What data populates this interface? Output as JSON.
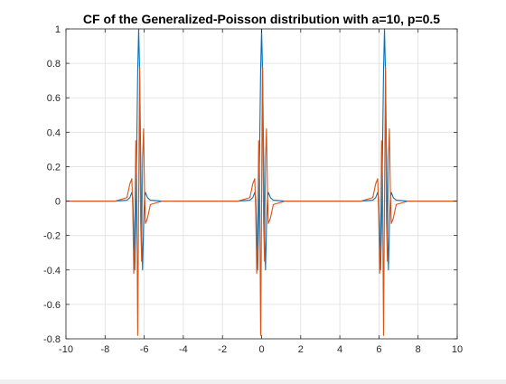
{
  "chart_data": {
    "type": "line",
    "title": "CF of the Generalized-Poisson distribution with a=10, p=0.5",
    "xlabel": "",
    "ylabel": "",
    "xlim": [
      -10,
      10
    ],
    "ylim": [
      -0.8,
      1
    ],
    "grid": true,
    "x_ticks": [
      "-10",
      "-8",
      "-6",
      "-4",
      "-2",
      "0",
      "2",
      "4",
      "6",
      "8",
      "10"
    ],
    "y_ticks": [
      "-0.8",
      "-0.6",
      "-0.4",
      "-0.2",
      "0",
      "0.2",
      "0.4",
      "0.6",
      "0.8",
      "1"
    ],
    "series": [
      {
        "color": "#0072BD",
        "centers": [
          -6.2832,
          0,
          6.2832
        ],
        "offsets": [
          -1.2,
          -0.6,
          -0.45,
          -0.35,
          -0.3,
          -0.25,
          -0.2,
          -0.15,
          -0.1,
          -0.05,
          0,
          0.05,
          0.1,
          0.15,
          0.2,
          0.25,
          0.3,
          0.35,
          0.45,
          0.6,
          1.2
        ],
        "values": [
          0,
          0.005,
          0.02,
          0.05,
          0.02,
          -0.15,
          -0.4,
          -0.15,
          0.3,
          0.75,
          1.0,
          0.75,
          0.3,
          -0.15,
          -0.4,
          -0.15,
          0.02,
          0.05,
          0.02,
          0.005,
          0
        ]
      },
      {
        "color": "#D95319",
        "centers": [
          -6.2832,
          0,
          6.2832
        ],
        "offsets": [
          -1.2,
          -0.6,
          -0.45,
          -0.35,
          -0.3,
          -0.25,
          -0.2,
          -0.15,
          -0.1,
          -0.05,
          0,
          0.05,
          0.1,
          0.15,
          0.2,
          0.25,
          0.3,
          0.35,
          0.45,
          0.6,
          1.2
        ],
        "values": [
          0,
          0.02,
          0.1,
          0.13,
          -0.05,
          -0.42,
          -0.25,
          0.35,
          0.12,
          -0.78,
          0.0,
          0.78,
          -0.12,
          -0.35,
          0.25,
          0.42,
          0.05,
          -0.13,
          -0.1,
          -0.02,
          0
        ]
      }
    ]
  }
}
